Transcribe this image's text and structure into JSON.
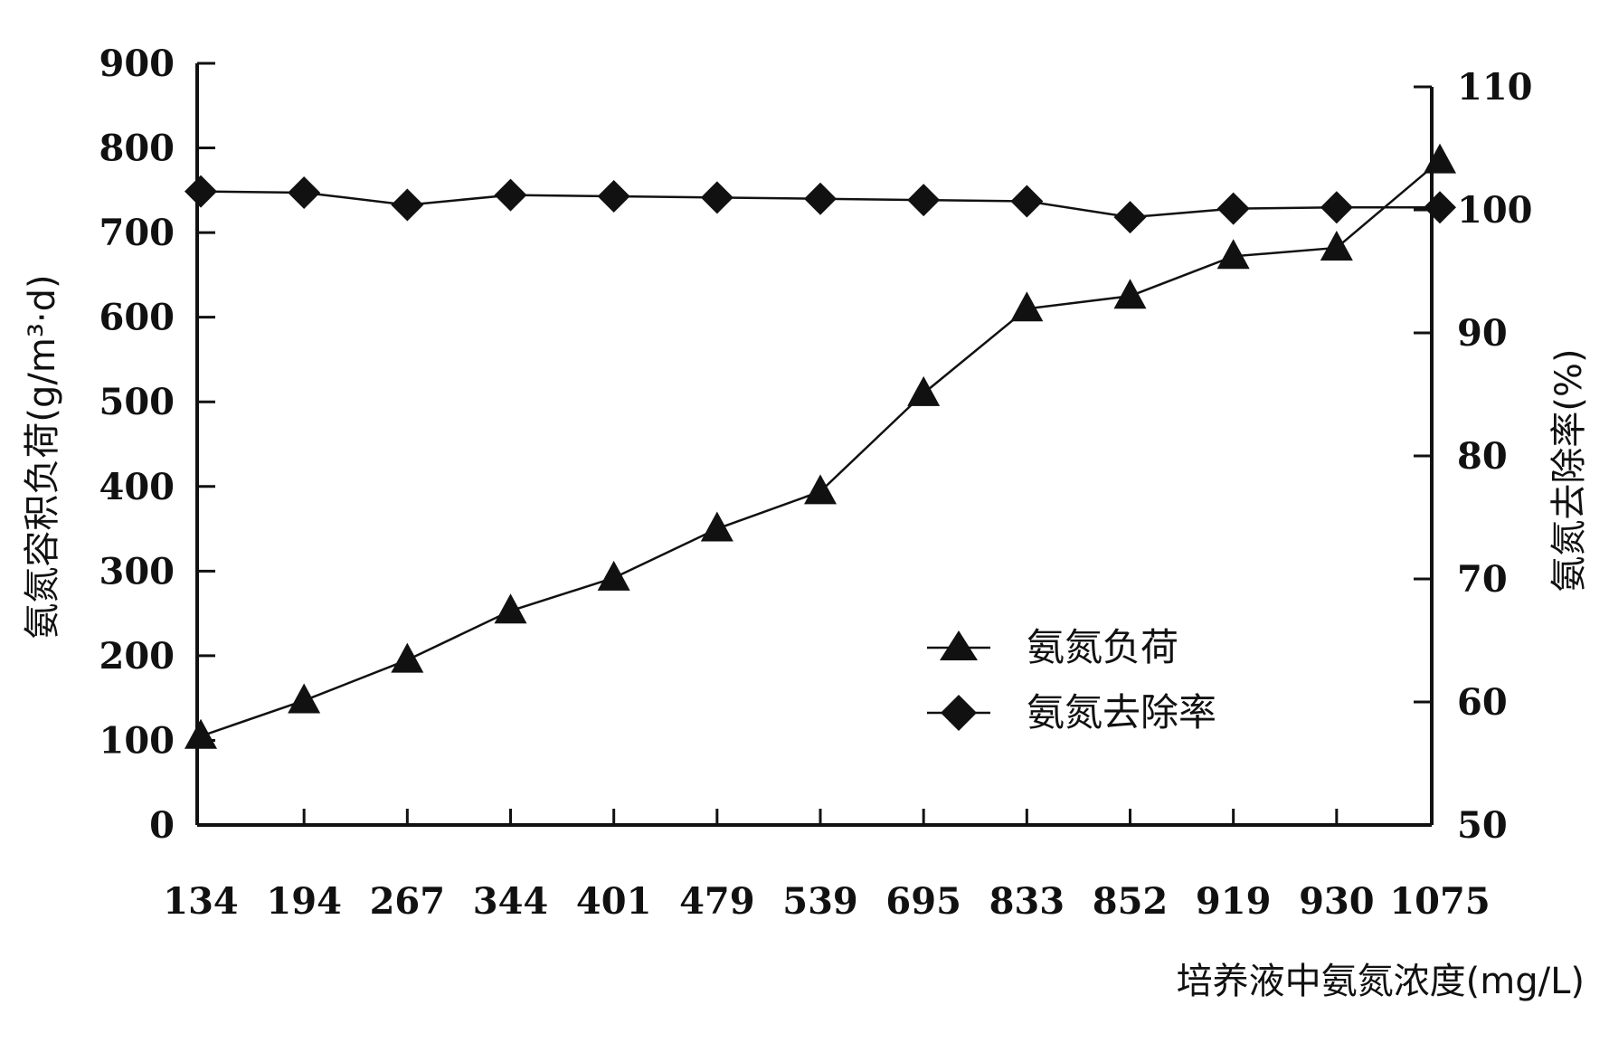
{
  "chart_data": {
    "type": "line",
    "x_categories": [
      "134",
      "194",
      "267",
      "344",
      "401",
      "479",
      "539",
      "695",
      "833",
      "852",
      "919",
      "930",
      "1075"
    ],
    "xlabel": "培养液中氨氮浓度(mg/L)",
    "ylabel_left": "氨氮容积负荷(g/m³·d)",
    "ylabel_right": "氨氮去除率(%)",
    "y_left_ticks": [
      "0",
      "100",
      "200",
      "300",
      "400",
      "500",
      "600",
      "700",
      "800",
      "900"
    ],
    "y_right_ticks": [
      "50",
      "60",
      "70",
      "80",
      "90",
      "100",
      "110"
    ],
    "y_left_range": [
      0,
      900
    ],
    "y_right_range": [
      50,
      110
    ],
    "series": [
      {
        "name": "氨氮负荷",
        "axis": "left",
        "marker": "triangle",
        "values": [
          105,
          147,
          195,
          253,
          292,
          350,
          394,
          510,
          610,
          625,
          672,
          682,
          785
        ]
      },
      {
        "name": "氨氮去除率",
        "axis": "right",
        "marker": "diamond",
        "values": [
          101.5,
          101.4,
          100.4,
          101.2,
          101.1,
          101.0,
          100.9,
          100.8,
          100.7,
          99.4,
          100.1,
          100.2,
          100.2
        ]
      }
    ],
    "legend_position": "lower-right",
    "grid": false
  }
}
